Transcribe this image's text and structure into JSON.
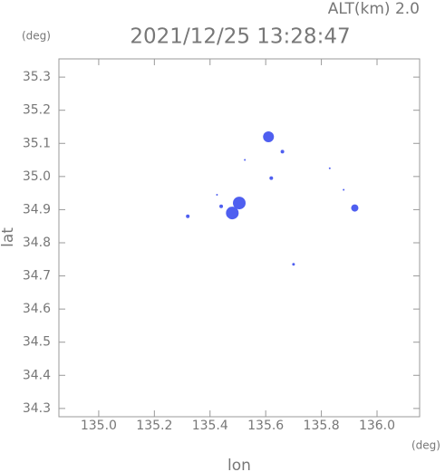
{
  "chart_data": {
    "type": "scatter",
    "title": "2021/12/25 13:28:47",
    "subtitle": "ALT(km)  2.0",
    "x_unit": "(deg)",
    "y_unit": "(deg)",
    "x_label": "lon",
    "y_label": "lat",
    "color": "#4f5ff0",
    "x": [
      135.61,
      135.66,
      135.525,
      135.62,
      135.505,
      135.48,
      135.44,
      135.32,
      135.425,
      135.83,
      135.88,
      135.92,
      135.7
    ],
    "values": [
      35.12,
      35.075,
      35.05,
      34.995,
      34.92,
      34.89,
      34.91,
      34.88,
      34.945,
      35.025,
      34.96,
      34.905,
      34.735
    ],
    "sizes": [
      6,
      2,
      1,
      2,
      7,
      7,
      2,
      2,
      1,
      1,
      1,
      4,
      1.5
    ],
    "xlim": [
      134.857,
      136.153
    ],
    "ylim": [
      34.275,
      35.355
    ],
    "xticks": [
      {
        "value": 135.0,
        "label": "135.0"
      },
      {
        "value": 135.2,
        "label": "135.2"
      },
      {
        "value": 135.4,
        "label": "135.4"
      },
      {
        "value": 135.6,
        "label": "135.6"
      },
      {
        "value": 135.8,
        "label": "135.8"
      },
      {
        "value": 136.0,
        "label": "136.0"
      }
    ],
    "yticks": [
      {
        "value": 34.3,
        "label": "34.3"
      },
      {
        "value": 34.4,
        "label": "34.4"
      },
      {
        "value": 34.5,
        "label": "34.5"
      },
      {
        "value": 34.6,
        "label": "34.6"
      },
      {
        "value": 34.7,
        "label": "34.7"
      },
      {
        "value": 34.8,
        "label": "34.8"
      },
      {
        "value": 34.9,
        "label": "34.9"
      },
      {
        "value": 35.0,
        "label": "35.0"
      },
      {
        "value": 35.1,
        "label": "35.1"
      },
      {
        "value": 35.2,
        "label": "35.2"
      },
      {
        "value": 35.3,
        "label": "35.3"
      }
    ]
  }
}
